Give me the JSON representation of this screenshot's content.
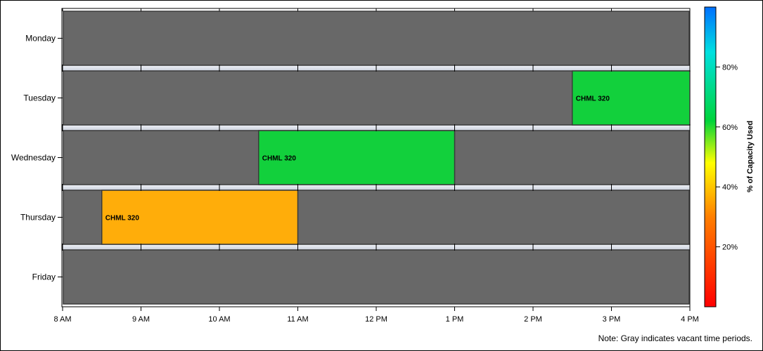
{
  "chart_data": {
    "type": "heatmap",
    "x_ticks": [
      "8 AM",
      "9 AM",
      "10 AM",
      "11 AM",
      "12 PM",
      "1 PM",
      "2 PM",
      "3 PM",
      "4 PM"
    ],
    "x_range_hours": [
      8,
      16
    ],
    "days": [
      "Monday",
      "Tuesday",
      "Wednesday",
      "Thursday",
      "Friday"
    ],
    "vacant_color": "#686868",
    "bookings": [
      {
        "day": "Tuesday",
        "start": 14.5,
        "end": 16.0,
        "label": "CHML 320",
        "color": "#12d03c"
      },
      {
        "day": "Wednesday",
        "start": 10.5,
        "end": 13.0,
        "label": "CHML 320",
        "color": "#12d03c"
      },
      {
        "day": "Thursday",
        "start": 8.5,
        "end": 11.0,
        "label": "CHML 320",
        "color": "#ffad0a"
      }
    ],
    "colorbar": {
      "title": "% of Capacity Used",
      "ticks": [
        "20%",
        "40%",
        "60%",
        "80%"
      ],
      "tick_values": [
        20,
        40,
        60,
        80
      ],
      "range": [
        0,
        100
      ],
      "colors": [
        "#ff0000",
        "#ff7f00",
        "#ffff00",
        "#00d43a",
        "#00e0e0",
        "#0070ff"
      ]
    },
    "note": "Note: Gray indicates vacant time periods."
  }
}
